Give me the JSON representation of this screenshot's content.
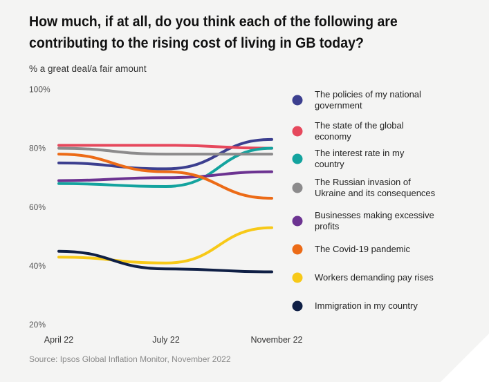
{
  "chart_data": {
    "type": "line",
    "title": "How much, if at all, do you think each of the following are contributing to the rising cost of living in GB today?",
    "subtitle": "% a great deal/a fair amount",
    "source": "Source: Ipsos Global Inflation Monitor, November 2022",
    "categories": [
      "April 22",
      "July 22",
      "November 22"
    ],
    "ylim": [
      20,
      100
    ],
    "yticks": [
      100,
      80,
      60,
      40,
      20
    ],
    "ytick_labels": [
      "100%",
      "80%",
      "60%",
      "40%",
      "20%"
    ],
    "grid": false,
    "legend_placement": "right",
    "series": [
      {
        "name": "The policies of my national government",
        "color": "#3c3f8f",
        "values": [
          75,
          73,
          83
        ]
      },
      {
        "name": "The state of the global economy",
        "color": "#e6485c",
        "values": [
          81,
          81,
          80
        ]
      },
      {
        "name": "The interest rate in my country",
        "color": "#13a39e",
        "values": [
          68,
          67,
          80
        ]
      },
      {
        "name": "The Russian invasion of Ukraine and its consequences",
        "color": "#8c8b8c",
        "values": [
          80,
          78,
          78
        ]
      },
      {
        "name": "Businesses making excessive profits",
        "color": "#6c3391",
        "values": [
          69,
          70,
          72
        ]
      },
      {
        "name": "The Covid-19 pandemic",
        "color": "#ec6b17",
        "values": [
          78,
          72,
          63
        ]
      },
      {
        "name": "Workers demanding pay rises",
        "color": "#f7c918",
        "values": [
          43,
          41,
          53
        ]
      },
      {
        "name": "Immigration in my country",
        "color": "#0f1f45",
        "values": [
          45,
          39,
          38
        ]
      }
    ]
  }
}
